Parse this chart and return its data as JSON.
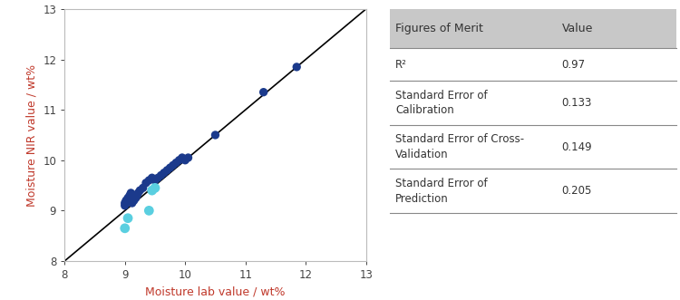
{
  "dark_blue_points": [
    [
      9.0,
      9.1
    ],
    [
      9.0,
      9.15
    ],
    [
      9.02,
      9.2
    ],
    [
      9.05,
      9.25
    ],
    [
      9.08,
      9.3
    ],
    [
      9.1,
      9.35
    ],
    [
      9.12,
      9.15
    ],
    [
      9.15,
      9.2
    ],
    [
      9.18,
      9.25
    ],
    [
      9.2,
      9.3
    ],
    [
      9.22,
      9.35
    ],
    [
      9.25,
      9.4
    ],
    [
      9.3,
      9.45
    ],
    [
      9.35,
      9.55
    ],
    [
      9.4,
      9.6
    ],
    [
      9.45,
      9.65
    ],
    [
      9.5,
      9.6
    ],
    [
      9.55,
      9.65
    ],
    [
      9.6,
      9.7
    ],
    [
      9.65,
      9.75
    ],
    [
      9.7,
      9.8
    ],
    [
      9.75,
      9.85
    ],
    [
      9.8,
      9.9
    ],
    [
      9.85,
      9.95
    ],
    [
      9.9,
      10.0
    ],
    [
      9.95,
      10.05
    ],
    [
      10.0,
      10.0
    ],
    [
      10.05,
      10.05
    ],
    [
      10.5,
      10.5
    ],
    [
      11.3,
      11.35
    ],
    [
      11.85,
      11.85
    ]
  ],
  "cyan_points": [
    [
      9.0,
      8.65
    ],
    [
      9.05,
      8.85
    ],
    [
      9.4,
      9.0
    ],
    [
      9.45,
      9.4
    ],
    [
      9.5,
      9.45
    ]
  ],
  "dark_blue_color": "#1b3a8c",
  "cyan_color": "#5acfe0",
  "line_color": "#000000",
  "axis_range": [
    8,
    13
  ],
  "xlabel": "Moisture lab value / wt%",
  "ylabel": "Moisture NIR value / wt%",
  "xlabel_color": "#c0392b",
  "ylabel_color": "#c0392b",
  "tick_color": "#444444",
  "spine_color": "#bbbbbb",
  "bg_color": "#ffffff",
  "table_header_bg": "#c8c8c8",
  "table_row_bg": "#ffffff",
  "table_divider_color": "#888888",
  "table_text_color": "#333333",
  "table_col1_header": "Figures of Merit",
  "table_col2_header": "Value",
  "table_rows": [
    [
      "R²",
      "0.97"
    ],
    [
      "Standard Error of\nCalibration",
      "0.133"
    ],
    [
      "Standard Error of Cross-\nValidation",
      "0.149"
    ],
    [
      "Standard Error of\nPrediction",
      "0.205"
    ]
  ],
  "marker_size": 45,
  "cyan_marker_size": 60
}
